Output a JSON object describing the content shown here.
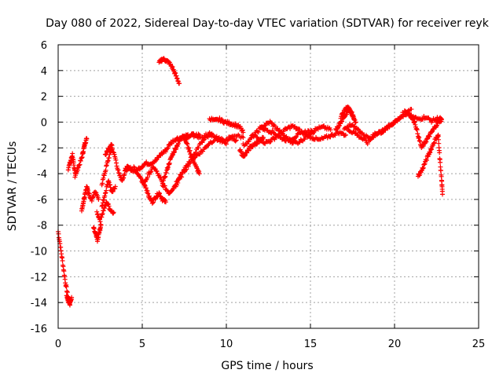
{
  "chart_data": {
    "type": "scatter",
    "title": "Day 080 of 2022, Sidereal Day-to-day VTEC variation (SDTVAR) for receiver reyk",
    "xlabel": "GPS time / hours",
    "ylabel": "SDTVAR / TECUs",
    "xlim": [
      0,
      25
    ],
    "ylim": [
      -16,
      6
    ],
    "xticks": [
      0,
      5,
      10,
      15,
      20,
      25
    ],
    "yticks": [
      -16,
      -14,
      -12,
      -10,
      -8,
      -6,
      -4,
      -2,
      0,
      2,
      4,
      6
    ],
    "grid": true,
    "marker": "+",
    "color": "#ff0000",
    "segments": [
      {
        "x": [
          0.0,
          0.15,
          0.3,
          0.45,
          0.6,
          0.7
        ],
        "y": [
          -8.5,
          -9.8,
          -11.2,
          -12.6,
          -13.6,
          -14.2
        ]
      },
      {
        "x": [
          0.5,
          0.6,
          0.7,
          0.8
        ],
        "y": [
          -13.4,
          -13.9,
          -14.0,
          -13.6
        ]
      },
      {
        "x": [
          0.6,
          0.75,
          0.85,
          0.95,
          1.05
        ],
        "y": [
          -3.6,
          -3.0,
          -2.5,
          -3.6,
          -4.0
        ]
      },
      {
        "x": [
          1.0,
          1.2,
          1.4,
          1.5,
          1.6,
          1.7
        ],
        "y": [
          -4.2,
          -3.5,
          -2.8,
          -2.2,
          -1.6,
          -1.3
        ]
      },
      {
        "x": [
          1.4,
          1.5,
          1.6,
          1.7,
          1.8,
          2.0,
          2.2,
          2.4
        ],
        "y": [
          -6.8,
          -6.2,
          -5.5,
          -5.0,
          -5.5,
          -6.0,
          -5.4,
          -6.0
        ]
      },
      {
        "x": [
          2.1,
          2.25,
          2.35,
          2.45,
          2.55
        ],
        "y": [
          -8.2,
          -8.8,
          -9.2,
          -8.5,
          -8.0
        ]
      },
      {
        "x": [
          2.3,
          2.5,
          2.7,
          2.9,
          3.1,
          3.3
        ],
        "y": [
          -7.0,
          -7.6,
          -6.8,
          -6.2,
          -6.8,
          -7.0
        ]
      },
      {
        "x": [
          2.6,
          2.8,
          3.0,
          3.2,
          3.4
        ],
        "y": [
          -6.6,
          -5.5,
          -4.5,
          -5.5,
          -5.0
        ]
      },
      {
        "x": [
          2.6,
          2.8,
          3.0,
          3.2,
          3.4,
          3.6,
          3.8,
          4.0,
          4.2,
          4.4
        ],
        "y": [
          -4.8,
          -3.8,
          -2.8,
          -2.0,
          -2.8,
          -4.0,
          -4.5,
          -3.8,
          -3.5,
          -3.8
        ]
      },
      {
        "x": [
          2.8,
          3.0,
          3.2
        ],
        "y": [
          -2.5,
          -2.0,
          -1.8
        ]
      },
      {
        "x": [
          4.0,
          4.3,
          4.6,
          4.9,
          5.2,
          5.5,
          5.8,
          6.1,
          6.4,
          6.7,
          7.0,
          7.3,
          7.6,
          8.0,
          8.4
        ],
        "y": [
          -3.5,
          -3.6,
          -3.8,
          -3.5,
          -3.2,
          -3.2,
          -3.0,
          -2.5,
          -2.2,
          -1.6,
          -1.3,
          -1.2,
          -1.1,
          -1.0,
          -1.0
        ]
      },
      {
        "x": [
          5.0,
          5.2,
          5.4,
          5.6,
          5.8,
          6.0,
          6.2,
          6.4
        ],
        "y": [
          -4.5,
          -5.0,
          -5.8,
          -6.2,
          -5.8,
          -5.5,
          -6.0,
          -6.2
        ]
      },
      {
        "x": [
          4.5,
          4.8,
          5.1,
          5.4,
          5.7,
          6.0,
          6.3,
          6.6,
          6.9,
          7.2,
          7.6,
          8.0,
          8.4,
          8.8,
          9.2
        ],
        "y": [
          -3.5,
          -4.2,
          -4.8,
          -4.0,
          -3.5,
          -4.2,
          -5.0,
          -5.5,
          -5.0,
          -4.2,
          -3.5,
          -2.6,
          -1.8,
          -1.2,
          -1.0
        ]
      },
      {
        "x": [
          6.2,
          6.4,
          6.6,
          6.8,
          7.0,
          7.2,
          7.4,
          7.6,
          7.8,
          8.0,
          8.2,
          8.4
        ],
        "y": [
          -4.8,
          -4.0,
          -3.2,
          -2.5,
          -2.0,
          -1.5,
          -1.0,
          -1.5,
          -2.2,
          -2.8,
          -3.5,
          -4.0
        ]
      },
      {
        "x": [
          6.0,
          6.2,
          6.4,
          6.6,
          6.8,
          7.0,
          7.2
        ],
        "y": [
          4.6,
          4.9,
          4.8,
          4.6,
          4.2,
          3.6,
          3.0
        ]
      },
      {
        "x": [
          7.0,
          7.4,
          7.8,
          8.2,
          8.6,
          9.0,
          9.4,
          9.8,
          10.2,
          10.6
        ],
        "y": [
          -5.0,
          -4.0,
          -3.2,
          -2.6,
          -2.2,
          -1.6,
          -1.3,
          -1.6,
          -1.2,
          -1.4
        ]
      },
      {
        "x": [
          7.5,
          8.0,
          8.5,
          9.0,
          9.5,
          10.0,
          10.5,
          11.0
        ],
        "y": [
          -1.3,
          -1.0,
          -1.2,
          -0.9,
          -1.2,
          -1.6,
          -1.0,
          -1.2
        ]
      },
      {
        "x": [
          9.0,
          9.3,
          9.6,
          9.9,
          10.2,
          10.5,
          10.8,
          11.0
        ],
        "y": [
          0.3,
          0.1,
          0.2,
          0.0,
          -0.1,
          -0.2,
          -0.4,
          -0.8
        ]
      },
      {
        "x": [
          10.8,
          11.0,
          11.2,
          11.4,
          11.6,
          11.8,
          12.0,
          12.2
        ],
        "y": [
          -2.2,
          -2.6,
          -2.4,
          -2.0,
          -1.8,
          -1.6,
          -1.4,
          -1.2
        ]
      },
      {
        "x": [
          11.0,
          11.4,
          11.8,
          12.2,
          12.6,
          13.0,
          13.4,
          13.8,
          14.2,
          14.6,
          15.0,
          15.4,
          15.8,
          16.2
        ],
        "y": [
          -1.8,
          -1.4,
          -0.8,
          -0.3,
          0.0,
          -0.5,
          -1.0,
          -1.5,
          -1.6,
          -1.3,
          -0.8,
          -0.5,
          -0.4,
          -0.6
        ]
      },
      {
        "x": [
          11.5,
          11.9,
          12.3,
          12.7,
          13.1,
          13.5,
          13.9,
          14.3,
          14.7,
          15.1,
          15.5,
          15.9,
          16.3,
          16.7,
          17.1
        ],
        "y": [
          -1.0,
          -1.2,
          -1.6,
          -1.4,
          -1.0,
          -0.6,
          -0.3,
          -0.6,
          -1.0,
          -1.2,
          -1.4,
          -1.2,
          -1.0,
          -0.8,
          -1.0
        ]
      },
      {
        "x": [
          12.0,
          12.4,
          12.8,
          13.2,
          13.6,
          14.0,
          14.4,
          14.8,
          15.2
        ],
        "y": [
          -0.4,
          -0.6,
          -0.8,
          -1.2,
          -1.4,
          -1.2,
          -0.9,
          -0.7,
          -0.8
        ]
      },
      {
        "x": [
          16.5,
          16.7,
          16.9,
          17.1,
          17.3,
          17.5,
          17.7
        ],
        "y": [
          -0.6,
          -0.2,
          0.2,
          0.6,
          1.0,
          0.6,
          0.0
        ]
      },
      {
        "x": [
          16.8,
          17.0,
          17.2,
          17.4,
          17.6
        ],
        "y": [
          0.4,
          0.8,
          1.2,
          0.8,
          0.2
        ]
      },
      {
        "x": [
          17.2,
          17.6,
          18.0,
          18.4,
          18.8,
          19.2,
          19.6,
          20.0,
          20.4,
          20.8,
          21.2
        ],
        "y": [
          -0.6,
          -0.8,
          -1.2,
          -1.6,
          -1.0,
          -0.8,
          -0.4,
          0.0,
          0.4,
          0.6,
          0.3
        ]
      },
      {
        "x": [
          17.0,
          17.4,
          17.8,
          18.2,
          18.6,
          19.0,
          19.4,
          19.8,
          20.2,
          20.6,
          21.0
        ],
        "y": [
          -0.5,
          -0.2,
          -0.6,
          -1.0,
          -1.2,
          -0.8,
          -0.6,
          -0.2,
          0.2,
          0.8,
          1.0
        ]
      },
      {
        "x": [
          20.8,
          21.0,
          21.2,
          21.4,
          21.6,
          21.8,
          22.0,
          22.2,
          22.4,
          22.6,
          22.8
        ],
        "y": [
          0.8,
          0.4,
          0.0,
          -1.0,
          -2.0,
          -1.6,
          -1.2,
          -0.8,
          -0.4,
          0.0,
          0.2
        ]
      },
      {
        "x": [
          21.4,
          21.6,
          21.8,
          22.0,
          22.2,
          22.4,
          22.6
        ],
        "y": [
          -4.2,
          -3.8,
          -3.2,
          -2.6,
          -2.0,
          -1.4,
          -1.0
        ]
      },
      {
        "x": [
          21.0,
          21.4,
          21.8,
          22.2,
          22.6,
          22.8
        ],
        "y": [
          0.5,
          0.2,
          0.4,
          0.1,
          0.3,
          0.2
        ]
      },
      {
        "x": [
          22.6,
          22.7,
          22.8,
          22.85
        ],
        "y": [
          -1.2,
          -3.0,
          -4.5,
          -5.6
        ]
      }
    ]
  }
}
